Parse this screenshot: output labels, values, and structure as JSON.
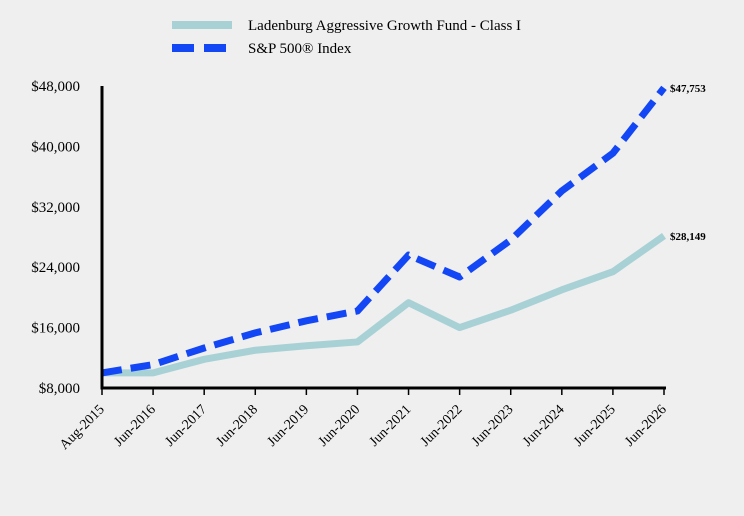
{
  "chart_data": {
    "type": "line",
    "x": [
      "Aug-2015",
      "Jun-2016",
      "Jun-2017",
      "Jun-2018",
      "Jun-2019",
      "Jun-2020",
      "Jun-2021",
      "Jun-2022",
      "Jun-2023",
      "Jun-2024",
      "Jun-2025",
      "Jun-2026"
    ],
    "y_ticks": [
      "$8,000",
      "$16,000",
      "$24,000",
      "$32,000",
      "$40,000",
      "$48,000"
    ],
    "ylim": [
      8000,
      48000
    ],
    "legend_position": "top",
    "grid": false,
    "series": [
      {
        "name": "Ladenburg Aggressive Growth Fund - Class I",
        "color": "#a8d1d6",
        "style": "solid",
        "values": [
          10000,
          10000,
          11800,
          13000,
          13600,
          14100,
          19300,
          16000,
          18300,
          21000,
          23400,
          28149
        ],
        "end_label": "$28,149"
      },
      {
        "name": "S&P 500® Index",
        "color": "#1346f5",
        "style": "dashed",
        "values": [
          10000,
          11100,
          13300,
          15300,
          16900,
          18200,
          25600,
          22700,
          27600,
          34100,
          39100,
          47753
        ],
        "end_label": "$47,753"
      }
    ]
  }
}
